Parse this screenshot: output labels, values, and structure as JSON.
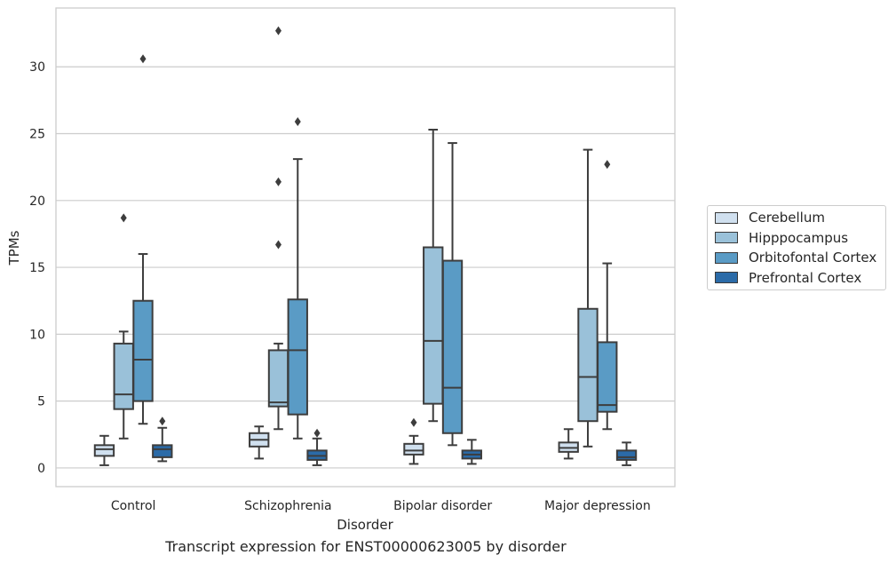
{
  "chart_data": {
    "type": "box",
    "categories": [
      "Control",
      "Schizophrenia",
      "Bipolar disorder",
      "Major depression"
    ],
    "xlabel": "Disorder",
    "ylabel": "TPMs",
    "ylim": [
      -1.4,
      34.4
    ],
    "yticks": [
      0,
      5,
      10,
      15,
      20,
      25,
      30
    ],
    "ytick_labels": [
      "0",
      "5",
      "10",
      "15",
      "20",
      "25",
      "30"
    ],
    "grid": "horizontal",
    "legend_position": "right",
    "series": [
      {
        "name": "Cerebellum",
        "color": "#d0e0ef",
        "boxes": [
          {
            "whislo": 0.2,
            "q1": 0.9,
            "med": 1.4,
            "q3": 1.7,
            "whishi": 2.4,
            "fliers": []
          },
          {
            "whislo": 0.7,
            "q1": 1.6,
            "med": 2.1,
            "q3": 2.6,
            "whishi": 3.1,
            "fliers": []
          },
          {
            "whislo": 0.3,
            "q1": 1.0,
            "med": 1.3,
            "q3": 1.8,
            "whishi": 2.4,
            "fliers": [
              3.4
            ]
          },
          {
            "whislo": 0.7,
            "q1": 1.2,
            "med": 1.5,
            "q3": 1.9,
            "whishi": 2.9,
            "fliers": []
          }
        ]
      },
      {
        "name": "Hipppocampus",
        "color": "#9ac1d9",
        "boxes": [
          {
            "whislo": 2.2,
            "q1": 4.4,
            "med": 5.5,
            "q3": 9.3,
            "whishi": 10.2,
            "fliers": [
              18.7
            ]
          },
          {
            "whislo": 2.9,
            "q1": 4.6,
            "med": 4.9,
            "q3": 8.8,
            "whishi": 9.3,
            "fliers": [
              16.7,
              21.4,
              32.7
            ]
          },
          {
            "whislo": 3.5,
            "q1": 4.8,
            "med": 9.5,
            "q3": 16.5,
            "whishi": 25.3,
            "fliers": []
          },
          {
            "whislo": 1.6,
            "q1": 3.5,
            "med": 6.8,
            "q3": 11.9,
            "whishi": 23.8,
            "fliers": []
          }
        ]
      },
      {
        "name": "Orbitofontal Cortex",
        "color": "#5a9bc5",
        "boxes": [
          {
            "whislo": 3.3,
            "q1": 5.0,
            "med": 8.1,
            "q3": 12.5,
            "whishi": 16.0,
            "fliers": [
              30.6
            ]
          },
          {
            "whislo": 2.2,
            "q1": 4.0,
            "med": 8.8,
            "q3": 12.6,
            "whishi": 23.1,
            "fliers": [
              25.9
            ]
          },
          {
            "whislo": 1.7,
            "q1": 2.6,
            "med": 6.0,
            "q3": 15.5,
            "whishi": 24.3,
            "fliers": []
          },
          {
            "whislo": 2.9,
            "q1": 4.2,
            "med": 4.7,
            "q3": 9.4,
            "whishi": 15.3,
            "fliers": [
              22.7
            ]
          }
        ]
      },
      {
        "name": "Prefrontal Cortex",
        "color": "#2b6ba8",
        "boxes": [
          {
            "whislo": 0.5,
            "q1": 0.8,
            "med": 1.4,
            "q3": 1.7,
            "whishi": 3.0,
            "fliers": [
              3.5
            ]
          },
          {
            "whislo": 0.2,
            "q1": 0.6,
            "med": 0.9,
            "q3": 1.3,
            "whishi": 2.2,
            "fliers": [
              2.6
            ]
          },
          {
            "whislo": 0.3,
            "q1": 0.7,
            "med": 1.0,
            "q3": 1.3,
            "whishi": 2.1,
            "fliers": []
          },
          {
            "whislo": 0.2,
            "q1": 0.6,
            "med": 0.8,
            "q3": 1.3,
            "whishi": 1.9,
            "fliers": []
          }
        ]
      }
    ],
    "caption": "Transcript expression for ENST00000623005 by disorder"
  }
}
